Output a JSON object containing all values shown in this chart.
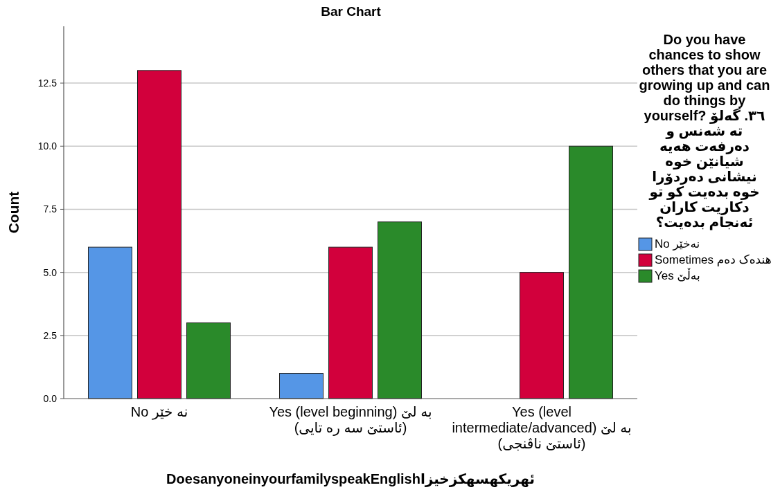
{
  "chart_data": {
    "type": "bar",
    "title": "Bar Chart",
    "xlabel": "DoesanyoneinyourfamilyspeakEnglishئهریکهسهکزخیزا",
    "ylabel": "Count",
    "legend_title": "Do you have chances to show others that you are growing up and can do things by yourself? ٣٦. گەلۆ تە شەنس و دەرفەت هەیە شیانێن خوە نیشانی دەردۆرا خوە بدەیت کو تو دکاریت کاران ئەنجام بدەیت؟",
    "categories": [
      "No نه خێر",
      "Yes (level beginning) بە لێ (ئاستێ سە رە تایی)",
      "Yes (level intermediate/advanced) بە لێ (ئاستێ ناڤنجی)"
    ],
    "series": [
      {
        "name": "No نەخێر",
        "color": "#5596e6",
        "values": [
          6,
          1,
          null
        ]
      },
      {
        "name": "Sometimes هندەک دەم",
        "color": "#d2003c",
        "values": [
          13,
          6,
          5
        ]
      },
      {
        "name": "Yes بەڵێ",
        "color": "#2a8a2a",
        "values": [
          3,
          7,
          10
        ]
      }
    ],
    "ylim": [
      0,
      14.75
    ],
    "yticks": [
      {
        "value": 0,
        "label": "0.0"
      },
      2.5,
      {
        "value": 5,
        "label": "5.0"
      },
      7.5,
      {
        "value": 10,
        "label": "10.0"
      },
      12.5
    ],
    "grid": "y",
    "legend": "right"
  }
}
